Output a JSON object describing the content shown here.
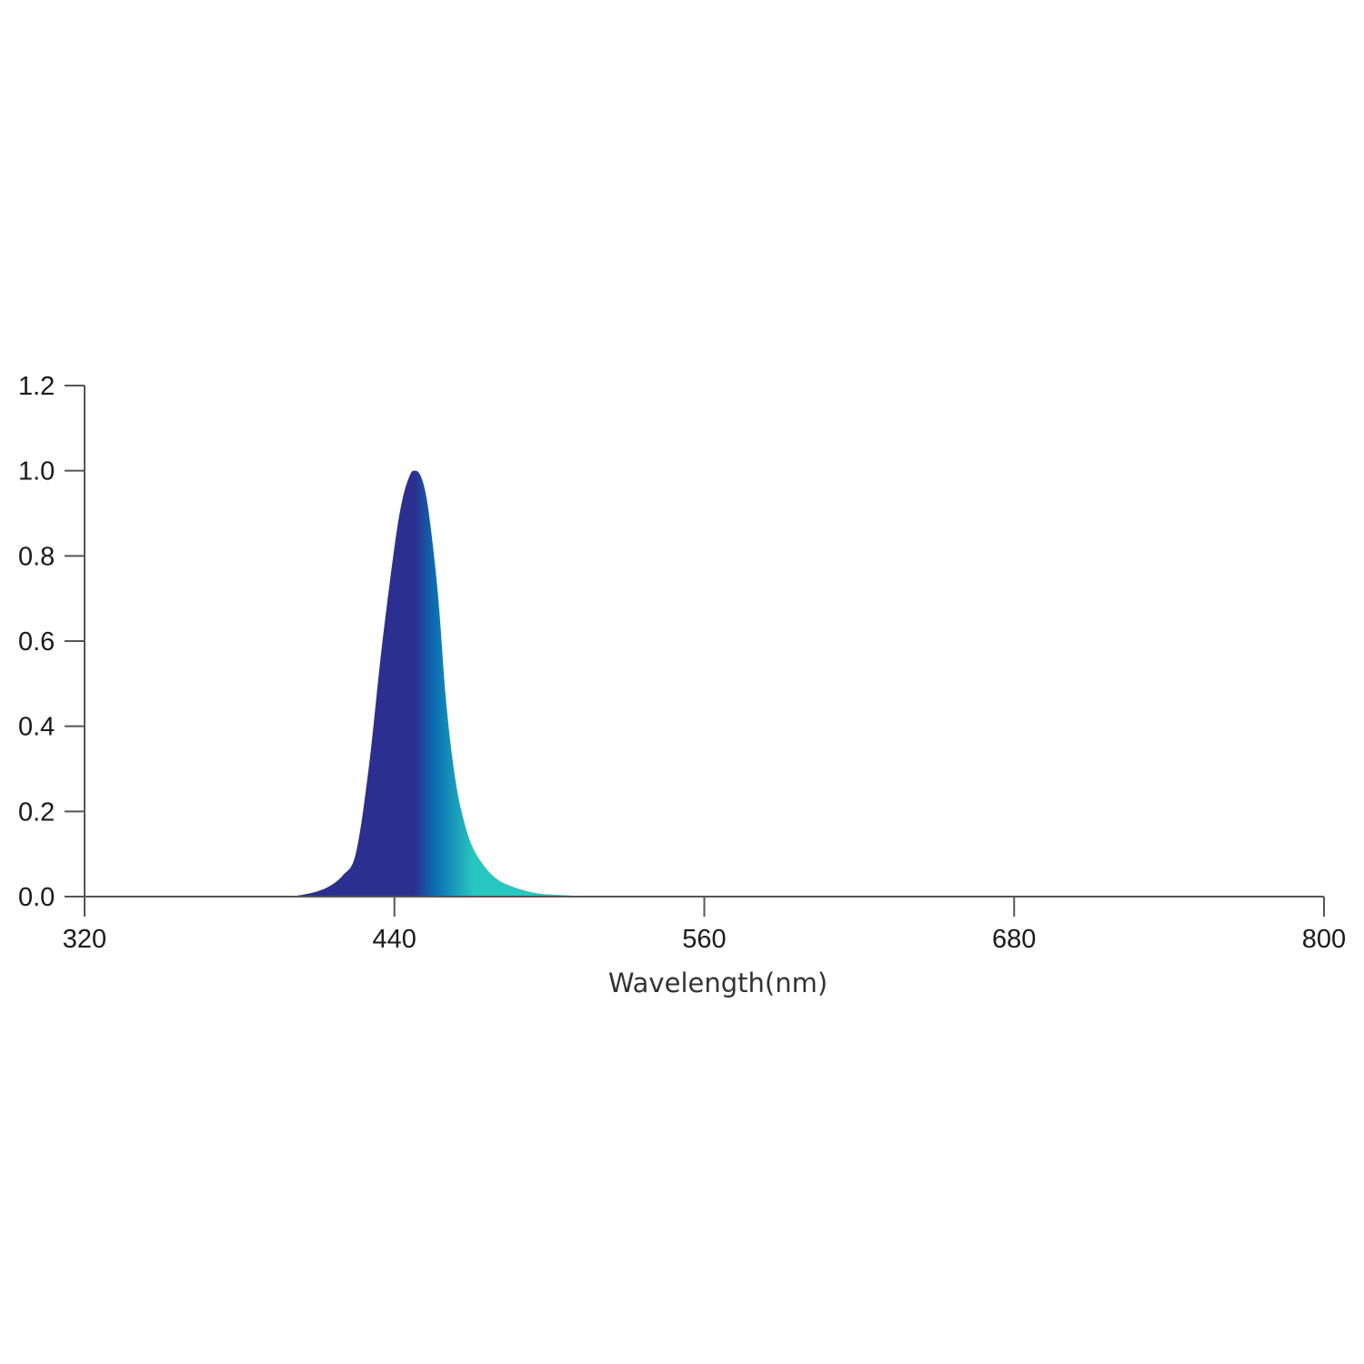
{
  "chart_data": {
    "type": "area",
    "title": "",
    "xlabel": "Wavelength(nm)",
    "ylabel": "",
    "xlim": [
      320,
      800
    ],
    "ylim": [
      0,
      1.2
    ],
    "x_ticks": [
      "320",
      "440",
      "560",
      "680",
      "800"
    ],
    "y_ticks": [
      "0.0",
      "0.2",
      "0.4",
      "0.6",
      "0.8",
      "1.0",
      "1.2"
    ],
    "grid": false,
    "legend": "none",
    "series": [
      {
        "x": [
          400,
          405,
          410,
          415,
          420,
          425,
          430,
          435,
          440,
          443,
          446,
          448,
          450,
          452,
          454,
          457,
          460,
          463,
          466,
          470,
          475,
          480,
          485,
          490,
          495,
          500,
          510,
          520
        ],
        "y": [
          0.0,
          0.005,
          0.012,
          0.025,
          0.05,
          0.1,
          0.3,
          0.58,
          0.82,
          0.93,
          0.99,
          1.0,
          0.99,
          0.95,
          0.87,
          0.7,
          0.46,
          0.3,
          0.2,
          0.12,
          0.07,
          0.04,
          0.025,
          0.015,
          0.008,
          0.005,
          0.002,
          0.0
        ]
      }
    ],
    "colors": {
      "gradient_start": "#2b2f8f",
      "gradient_mid": "#1f4a9c",
      "gradient_blue": "#0b6fb3",
      "gradient_end": "#27c6c0",
      "axis": "#555555"
    }
  }
}
